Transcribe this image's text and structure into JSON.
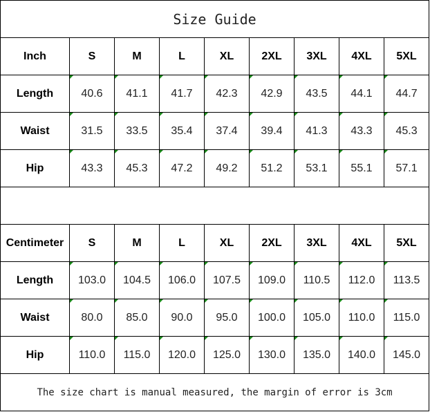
{
  "title": "Size Guide",
  "sizes": [
    "S",
    "M",
    "L",
    "XL",
    "2XL",
    "3XL",
    "4XL",
    "5XL"
  ],
  "tables": [
    {
      "unit": "Inch",
      "rows": [
        {
          "label": "Length",
          "values": [
            "40.6",
            "41.1",
            "41.7",
            "42.3",
            "42.9",
            "43.5",
            "44.1",
            "44.7"
          ]
        },
        {
          "label": "Waist",
          "values": [
            "31.5",
            "33.5",
            "35.4",
            "37.4",
            "39.4",
            "41.3",
            "43.3",
            "45.3"
          ]
        },
        {
          "label": "Hip",
          "values": [
            "43.3",
            "45.3",
            "47.2",
            "49.2",
            "51.2",
            "53.1",
            "55.1",
            "57.1"
          ]
        }
      ]
    },
    {
      "unit": "Centimeter",
      "rows": [
        {
          "label": "Length",
          "values": [
            "103.0",
            "104.5",
            "106.0",
            "107.5",
            "109.0",
            "110.5",
            "112.0",
            "113.5"
          ]
        },
        {
          "label": "Waist",
          "values": [
            "80.0",
            "85.0",
            "90.0",
            "95.0",
            "100.0",
            "105.0",
            "110.0",
            "115.0"
          ]
        },
        {
          "label": "Hip",
          "values": [
            "110.0",
            "115.0",
            "120.0",
            "125.0",
            "130.0",
            "135.0",
            "140.0",
            "145.0"
          ]
        }
      ]
    }
  ],
  "note": "The size chart is manual measured, the margin of error is 3cm",
  "colors": {
    "text_marker": "#1a8a1a"
  }
}
